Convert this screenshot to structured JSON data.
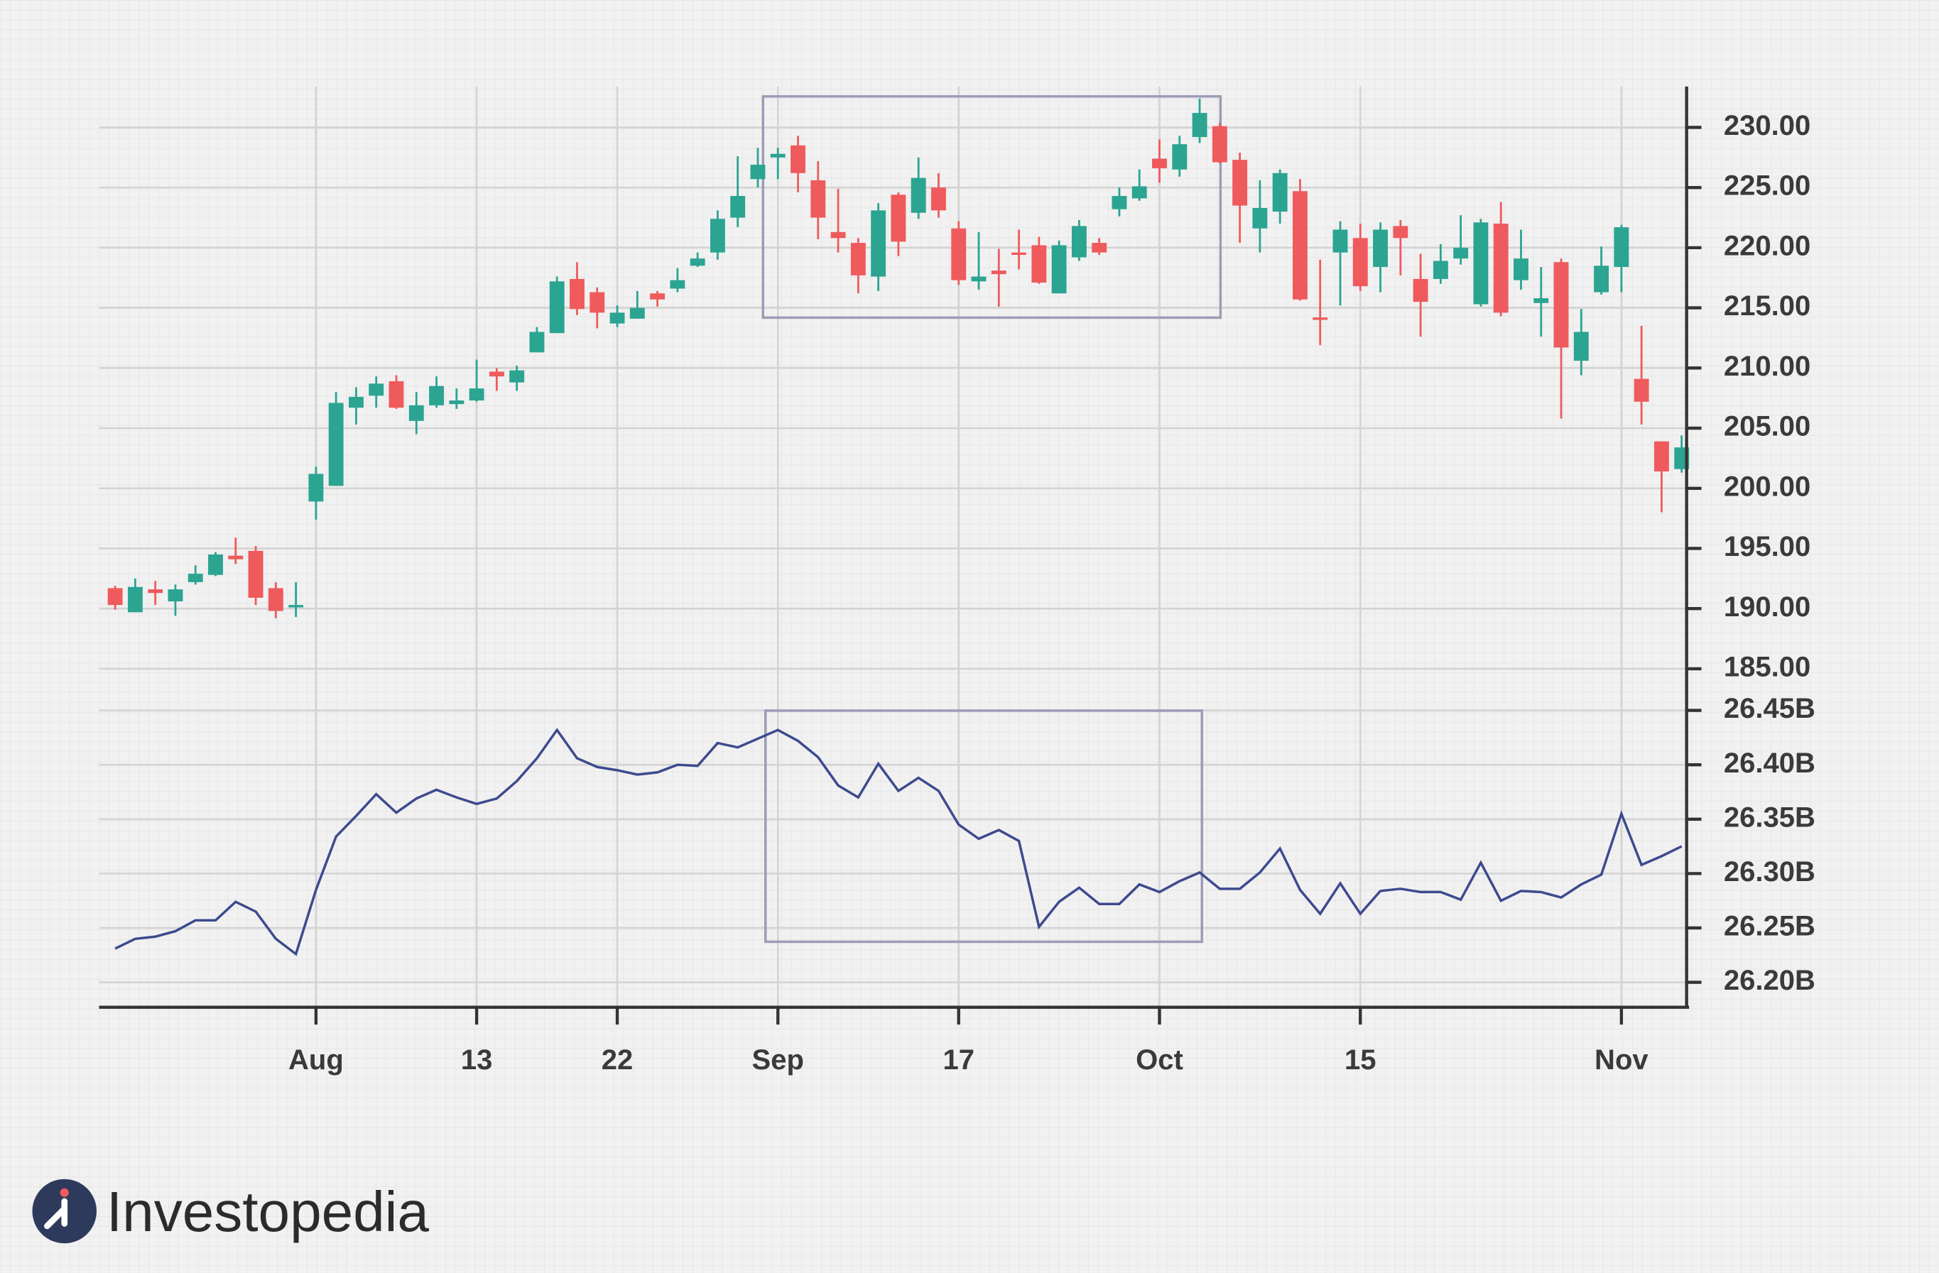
{
  "chart_data": [
    {
      "type": "candlestick",
      "categories": [
        null,
        null,
        null,
        null,
        null,
        null,
        null,
        null,
        null,
        null,
        "Aug",
        null,
        null,
        null,
        null,
        null,
        null,
        null,
        "13",
        null,
        null,
        null,
        null,
        null,
        null,
        "22",
        null,
        null,
        null,
        null,
        null,
        null,
        null,
        "Sep",
        null,
        null,
        null,
        null,
        null,
        null,
        null,
        null,
        "17",
        null,
        null,
        null,
        null,
        null,
        null,
        null,
        null,
        null,
        "Oct",
        null,
        null,
        null,
        null,
        null,
        null,
        null,
        null,
        null,
        "15",
        null,
        null,
        null,
        null,
        null,
        null,
        null,
        null,
        null,
        null,
        null,
        null,
        "Nov",
        null,
        null,
        null
      ],
      "open": [
        191.7,
        189.7,
        191.6,
        190.6,
        192.2,
        192.8,
        194.4,
        194.8,
        191.7,
        190.1,
        198.9,
        200.2,
        206.7,
        207.7,
        208.9,
        205.6,
        206.9,
        207.0,
        207.3,
        209.7,
        208.8,
        211.3,
        212.9,
        217.4,
        216.3,
        213.7,
        214.1,
        216.2,
        216.6,
        218.5,
        219.6,
        222.5,
        225.7,
        227.5,
        228.5,
        225.6,
        221.3,
        220.4,
        217.6,
        224.4,
        222.9,
        225.0,
        221.6,
        217.2,
        218.1,
        219.6,
        220.2,
        216.2,
        219.2,
        220.4,
        223.2,
        224.1,
        227.4,
        226.5,
        229.2,
        230.1,
        227.3,
        221.6,
        223.0,
        224.7,
        214.2,
        219.6,
        220.8,
        218.4,
        221.8,
        217.4,
        217.4,
        219.1,
        215.3,
        222.0,
        217.3,
        215.4,
        218.8,
        210.6,
        216.3,
        218.4,
        209.1,
        203.9,
        201.6
      ],
      "high": [
        191.9,
        192.5,
        192.3,
        192.0,
        193.6,
        194.7,
        195.9,
        195.2,
        192.2,
        192.2,
        201.8,
        208.0,
        208.4,
        209.3,
        209.4,
        208.0,
        209.3,
        208.3,
        210.7,
        210.0,
        210.2,
        213.4,
        217.6,
        218.8,
        216.7,
        215.2,
        216.4,
        216.4,
        218.3,
        219.6,
        223.1,
        227.6,
        228.3,
        228.3,
        229.3,
        227.2,
        224.9,
        220.8,
        223.7,
        224.6,
        227.5,
        226.2,
        222.2,
        221.3,
        219.9,
        221.5,
        220.9,
        220.6,
        222.3,
        220.8,
        225.0,
        226.5,
        229.0,
        229.3,
        232.4,
        230.4,
        227.9,
        225.6,
        226.5,
        225.7,
        219.0,
        222.2,
        222.0,
        222.1,
        222.3,
        219.5,
        220.3,
        222.7,
        222.4,
        223.8,
        221.5,
        218.4,
        219.1,
        214.9,
        220.1,
        221.9,
        213.5,
        203.9,
        204.4
      ],
      "low": [
        189.9,
        189.7,
        190.3,
        189.4,
        192.0,
        192.7,
        193.7,
        190.3,
        189.2,
        189.3,
        197.4,
        200.2,
        205.3,
        206.7,
        206.6,
        204.5,
        206.7,
        206.6,
        207.2,
        208.1,
        208.1,
        211.3,
        212.9,
        214.4,
        213.3,
        213.4,
        214.1,
        215.1,
        216.3,
        218.4,
        219.0,
        221.7,
        225.0,
        225.7,
        224.6,
        220.7,
        219.6,
        216.2,
        216.4,
        219.3,
        222.4,
        222.5,
        216.9,
        216.5,
        215.1,
        218.2,
        217.0,
        216.2,
        218.9,
        219.4,
        222.6,
        223.9,
        225.4,
        225.9,
        228.7,
        227.0,
        220.4,
        219.6,
        222.0,
        215.6,
        211.9,
        215.2,
        216.4,
        216.3,
        217.7,
        212.6,
        217.0,
        218.6,
        215.1,
        214.3,
        216.5,
        212.6,
        205.8,
        209.4,
        216.1,
        216.3,
        205.3,
        198.0,
        201.3
      ],
      "close": [
        190.3,
        191.8,
        191.3,
        191.6,
        192.9,
        194.5,
        194.1,
        190.9,
        189.8,
        190.3,
        201.2,
        207.1,
        207.6,
        208.7,
        206.7,
        206.9,
        208.5,
        207.3,
        208.3,
        209.3,
        209.8,
        213.0,
        217.2,
        214.9,
        214.6,
        214.6,
        215.0,
        215.7,
        217.3,
        219.1,
        222.4,
        224.3,
        226.9,
        227.8,
        226.2,
        222.5,
        220.8,
        217.7,
        223.1,
        220.5,
        225.8,
        223.1,
        217.3,
        217.6,
        217.8,
        219.4,
        217.1,
        220.2,
        221.8,
        219.6,
        224.3,
        225.1,
        226.6,
        228.6,
        231.2,
        227.1,
        223.5,
        223.3,
        226.2,
        215.7,
        214.0,
        221.5,
        216.8,
        221.5,
        220.8,
        215.5,
        218.9,
        220.0,
        222.1,
        214.6,
        219.1,
        215.8,
        211.7,
        213.0,
        218.5,
        221.7,
        207.2,
        201.4,
        203.4
      ],
      "up_color": "#2ba492",
      "down_color": "#ef5a5c",
      "ylim": [
        183.5,
        233.5
      ],
      "yticks": [
        {
          "value": 185,
          "label": "185.00"
        },
        {
          "value": 190,
          "label": "190.00"
        },
        {
          "value": 195,
          "label": "195.00"
        },
        {
          "value": 200,
          "label": "200.00"
        },
        {
          "value": 205,
          "label": "205.00"
        },
        {
          "value": 210,
          "label": "210.00"
        },
        {
          "value": 215,
          "label": "215.00"
        },
        {
          "value": 220,
          "label": "220.00"
        },
        {
          "value": 225,
          "label": "225.00"
        },
        {
          "value": 230,
          "label": "230.00"
        }
      ],
      "grid": true
    },
    {
      "type": "line",
      "values": [
        26.231,
        26.24,
        26.242,
        26.247,
        26.257,
        26.257,
        26.274,
        26.265,
        26.24,
        26.226,
        26.285,
        26.334,
        26.353,
        26.373,
        26.356,
        26.369,
        26.377,
        26.37,
        26.364,
        26.369,
        26.385,
        26.406,
        26.432,
        26.406,
        26.398,
        26.395,
        26.391,
        26.393,
        26.4,
        26.399,
        26.42,
        26.416,
        26.424,
        26.432,
        26.422,
        26.407,
        26.381,
        26.37,
        26.401,
        26.376,
        26.388,
        26.376,
        26.345,
        26.332,
        26.34,
        26.33,
        26.251,
        26.274,
        26.287,
        26.272,
        26.272,
        26.29,
        26.283,
        26.293,
        26.301,
        26.286,
        26.286,
        26.301,
        26.323,
        26.285,
        26.263,
        26.291,
        26.263,
        26.284,
        26.286,
        26.283,
        26.283,
        26.276,
        26.31,
        26.275,
        26.284,
        26.283,
        26.278,
        26.29,
        26.299,
        26.355,
        26.308,
        26.316,
        26.325
      ],
      "color": "#3d4a8e",
      "ylim": [
        26.175,
        26.46
      ],
      "yticks": [
        {
          "value": 26.2,
          "label": "26.20B"
        },
        {
          "value": 26.25,
          "label": "26.25B"
        },
        {
          "value": 26.3,
          "label": "26.30B"
        },
        {
          "value": 26.35,
          "label": "26.35B"
        },
        {
          "value": 26.4,
          "label": "26.40B"
        },
        {
          "value": 26.45,
          "label": "26.45B"
        }
      ],
      "grid": true
    }
  ],
  "logo": "Investopedia"
}
